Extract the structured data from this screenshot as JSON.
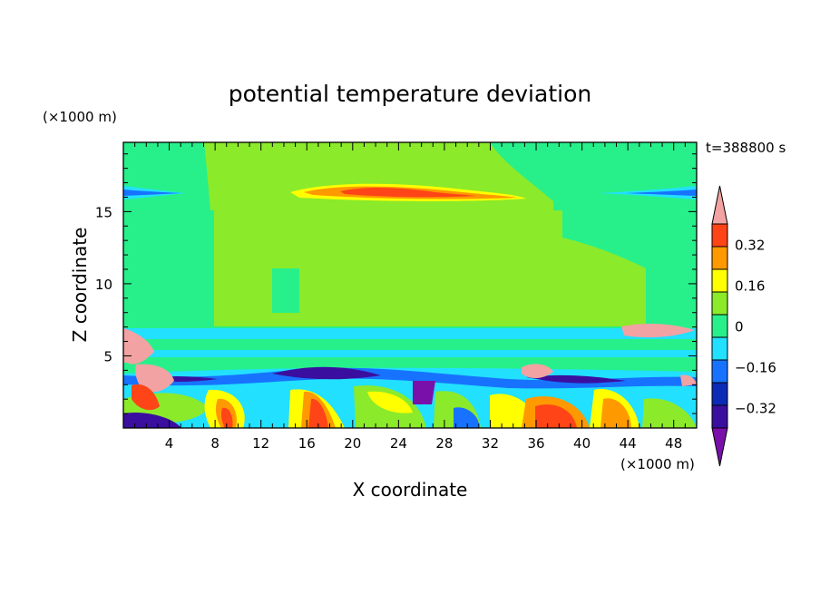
{
  "chart_data": {
    "type": "heatmap",
    "title": "potential temperature deviation",
    "xlabel": "X coordinate",
    "ylabel": "Z coordinate",
    "x_unit": "(×1000 m)",
    "y_unit": "(×1000 m)",
    "time_label": "t=388800 s",
    "xlim": [
      0,
      50
    ],
    "ylim": [
      0,
      19.8
    ],
    "x_ticks": [
      4,
      8,
      12,
      16,
      20,
      24,
      28,
      32,
      36,
      40,
      44,
      48
    ],
    "y_ticks": [
      5,
      10,
      15
    ],
    "colorbar": {
      "levels": [
        -0.4,
        -0.32,
        -0.24,
        -0.16,
        -0.08,
        0,
        0.08,
        0.16,
        0.24,
        0.32,
        0.4
      ],
      "labels": [
        "0.32",
        "0.16",
        "0",
        "−0.16",
        "−0.32"
      ],
      "label_values": [
        0.32,
        0.16,
        0,
        -0.16,
        -0.32
      ],
      "colors_bottom_to_top": [
        "#7a10aa",
        "#3a0fa0",
        "#0b2ab5",
        "#1773ff",
        "#22e0ff",
        "#27f08a",
        "#8bea2a",
        "#ffff00",
        "#ff9900",
        "#ff4418",
        "#f2a2a2"
      ]
    }
  }
}
